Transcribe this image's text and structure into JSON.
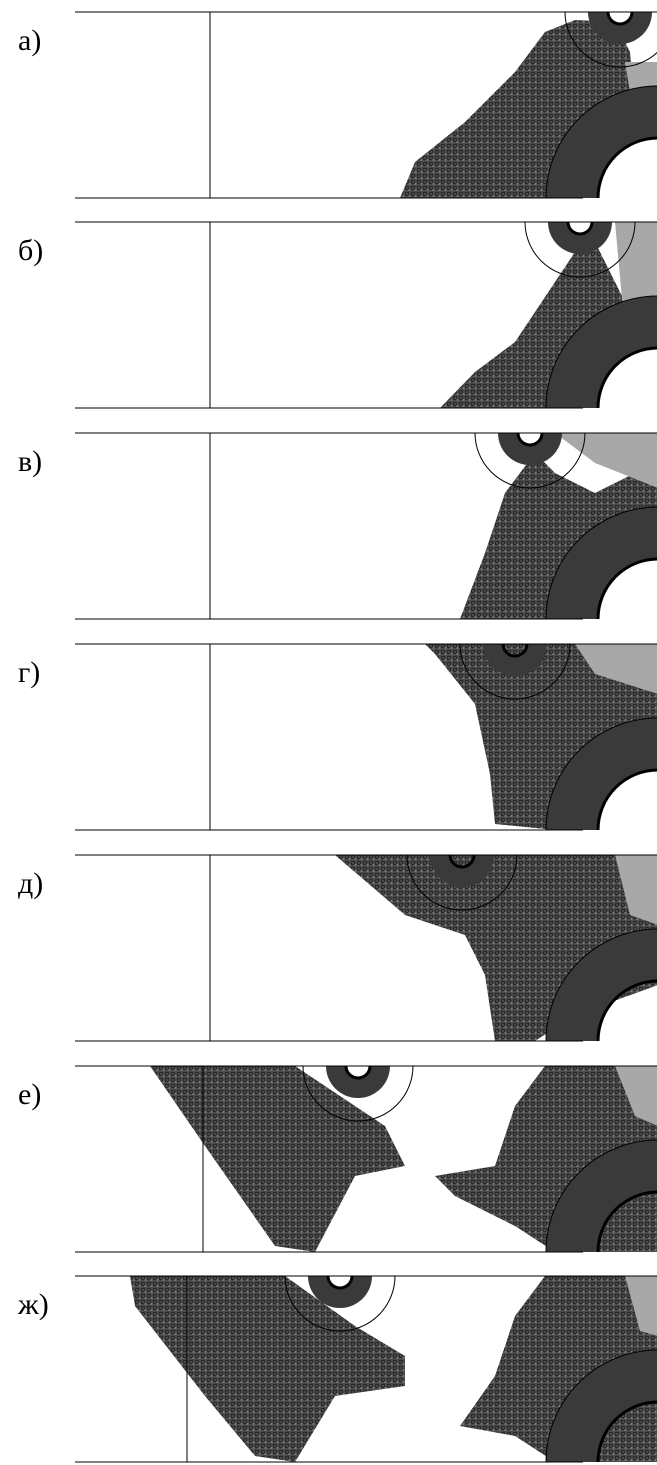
{
  "panels": [
    {
      "label": "а)"
    },
    {
      "label": "б)"
    },
    {
      "label": "в)"
    },
    {
      "label": "г)"
    },
    {
      "label": "д)"
    },
    {
      "label": "е)"
    },
    {
      "label": "ж)"
    }
  ]
}
